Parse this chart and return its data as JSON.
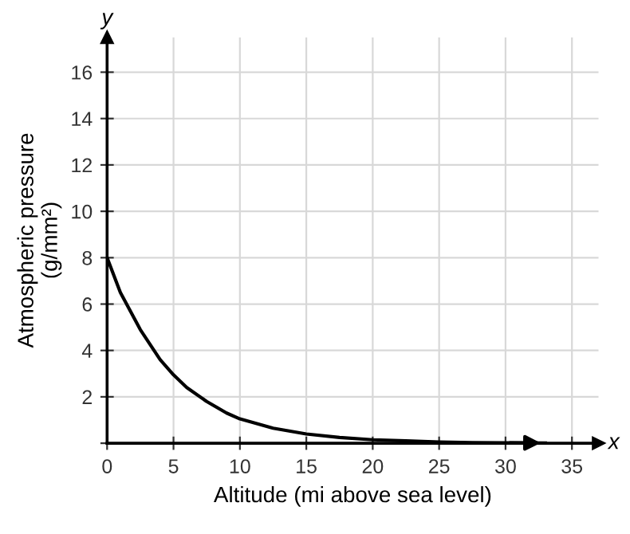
{
  "chart_data": {
    "type": "line",
    "xlabel": "Altitude (mi above sea level)",
    "ylabel": "Atmospheric pressure\n(g/mm²)",
    "annotations": [
      "x",
      "y"
    ],
    "x": [
      0,
      1,
      2.5,
      4,
      5,
      6,
      7.5,
      9,
      10,
      12.5,
      15,
      17.5,
      20,
      22.5,
      25,
      27.5,
      30,
      33
    ],
    "series": [
      {
        "color": "#000000",
        "values": [
          8,
          6.5,
          4.9,
          3.6,
          2.95,
          2.4,
          1.8,
          1.3,
          1.05,
          0.65,
          0.4,
          0.25,
          0.15,
          0.1,
          0.05,
          0.03,
          0.02,
          0.01
        ]
      }
    ],
    "xlim": [
      0,
      37
    ],
    "ylim": [
      0,
      17.5
    ],
    "xticks": [
      0,
      5,
      10,
      15,
      20,
      25,
      30,
      35
    ],
    "yticks": [
      {
        "value": 0,
        "label": null
      },
      2,
      4,
      6,
      8,
      10,
      12,
      14,
      16
    ],
    "grid": true,
    "marker": "none",
    "line_style": "solid"
  }
}
